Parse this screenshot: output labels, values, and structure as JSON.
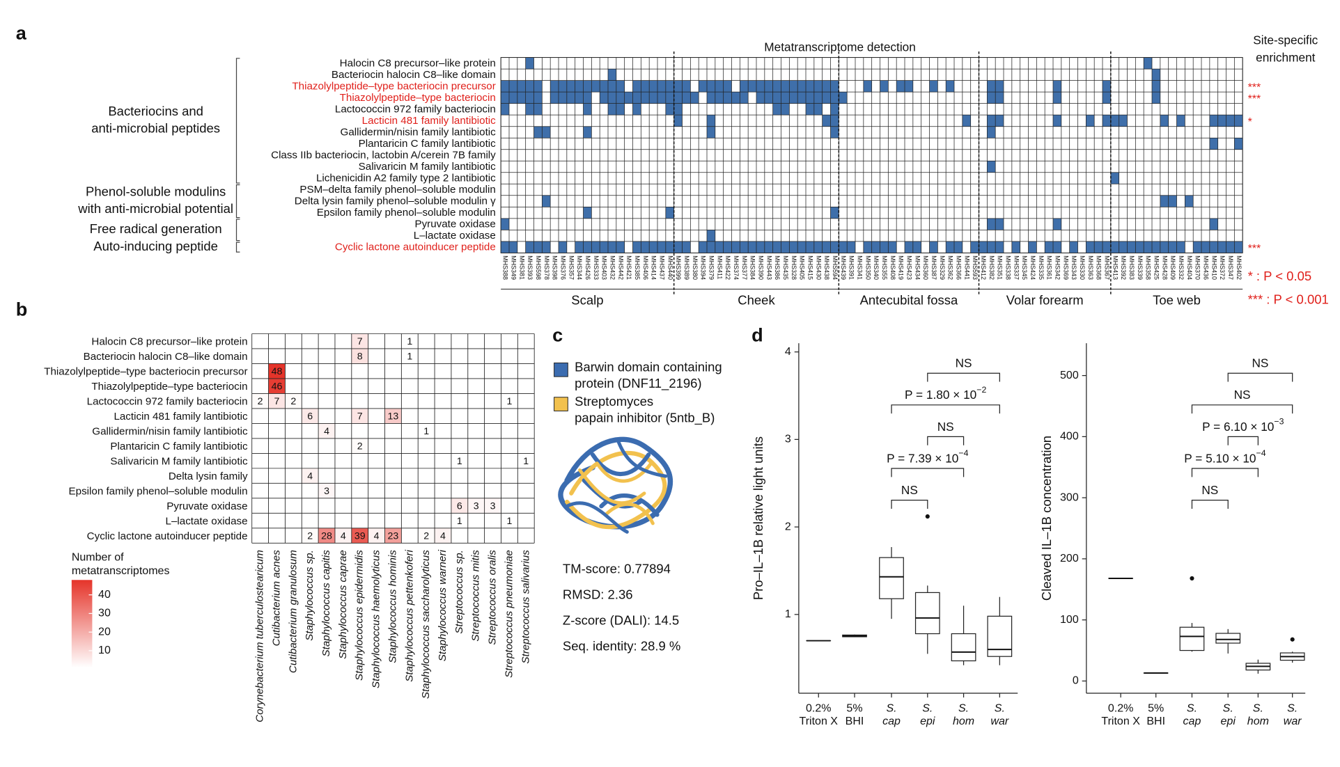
{
  "panel_a": {
    "letter": "a",
    "title": "Metatranscriptome detection",
    "enrichment_title": [
      "Site-specific",
      "enrichment"
    ],
    "key": [
      "* : P < 0.05",
      "*** : P < 0.001"
    ],
    "key_color": "#e0201b",
    "cell_color": "#3f6faa",
    "sites": [
      {
        "name": "Scalp",
        "samples": [
          "MHS388",
          "MHS349",
          "MHS381",
          "MHS393",
          "MHS598",
          "MHS378",
          "MHS398",
          "MHS376",
          "MHS357",
          "MHS344",
          "MHS426",
          "MHS333",
          "MHS403",
          "MHS432",
          "MHS442",
          "MHS421",
          "MHS385",
          "MHS406",
          "MHS414",
          "MHS437",
          "MHS440"
        ]
      },
      {
        "name": "Cheek",
        "samples": [
          "MHS399",
          "MHS389",
          "MHS380",
          "MHS394",
          "MHS379",
          "MHS411",
          "MHS422",
          "MHS374",
          "MHS377",
          "MHS384",
          "MHS390",
          "MHS443",
          "MHS386",
          "MHS435",
          "MHS328",
          "MHS405",
          "MHS415",
          "MHS430",
          "MHS438",
          "MHS594"
        ]
      },
      {
        "name": "Antecubital fossa",
        "samples": [
          "MHS439",
          "MHS391",
          "MHS341",
          "MHS350",
          "MHS340",
          "MHS355",
          "MHS408",
          "MHS419",
          "MHS423",
          "MHS434",
          "MHS360",
          "MHS387",
          "MHS329",
          "MHS362",
          "MHS366",
          "MHS441",
          "MHS593"
        ]
      },
      {
        "name": "Volar forearm",
        "samples": [
          "MHS412",
          "MHS382",
          "MHS351",
          "MHS338",
          "MHS337",
          "MHS345",
          "MHS424",
          "MHS335",
          "MHS361",
          "MHS342",
          "MHS369",
          "MHS343",
          "MHS330",
          "MHS363",
          "MHS368",
          "MHS367"
        ]
      },
      {
        "name": "Toe web",
        "samples": [
          "MHS413",
          "MHS392",
          "MHS383",
          "MHS339",
          "MHS358",
          "MHS425",
          "MHS428",
          "MHS409",
          "MHS332",
          "MHS404",
          "MHS370",
          "MHS436",
          "MHS410",
          "MHS372",
          "MHS347",
          "MHS402"
        ]
      }
    ],
    "groups": [
      {
        "label": [
          "Bacteriocins and",
          "anti-microbial peptides"
        ],
        "rows": [
          0,
          10
        ]
      },
      {
        "label": [
          "Phenol-soluble modulins",
          "with anti-microbial potential"
        ],
        "rows": [
          11,
          13
        ]
      },
      {
        "label": [
          "Free radical generation"
        ],
        "rows": [
          14,
          15
        ]
      },
      {
        "label": [
          "Auto-inducing peptide"
        ],
        "rows": [
          16,
          16
        ]
      }
    ],
    "rows": [
      {
        "label": "Halocin C8 precursor–like protein",
        "color": "#111111",
        "detected": [
          3,
          78
        ]
      },
      {
        "label": "Bacteriocin halocin C8–like domain",
        "color": "#111111",
        "detected": [
          13,
          79
        ]
      },
      {
        "label": "Thiazolylpeptide–type bacteriocin precursor",
        "color": "#e0201b",
        "significance": "***",
        "detected": [
          0,
          1,
          2,
          3,
          4,
          6,
          7,
          8,
          9,
          10,
          11,
          12,
          13,
          14,
          16,
          17,
          18,
          19,
          20,
          21,
          22,
          24,
          25,
          26,
          27,
          29,
          30,
          31,
          32,
          33,
          34,
          35,
          36,
          37,
          38,
          39,
          40,
          44,
          46,
          48,
          49,
          52,
          54,
          59,
          60,
          67,
          73,
          79
        ]
      },
      {
        "label": "Thiazolylpeptide–type bacteriocin",
        "color": "#e0201b",
        "significance": "***",
        "detected": [
          0,
          1,
          2,
          3,
          4,
          6,
          7,
          8,
          9,
          10,
          12,
          13,
          14,
          15,
          16,
          17,
          18,
          19,
          20,
          21,
          22,
          23,
          25,
          26,
          27,
          28,
          29,
          31,
          32,
          33,
          34,
          35,
          36,
          37,
          38,
          39,
          40,
          41,
          59,
          60,
          67,
          73,
          79
        ]
      },
      {
        "label": "Lactococcin 972 family bacteriocin",
        "color": "#111111",
        "detected": [
          0,
          3,
          4,
          10,
          13,
          14,
          16,
          20,
          21,
          33,
          34,
          37,
          38,
          40
        ]
      },
      {
        "label": "Lacticin 481 family lantibiotic",
        "color": "#e0201b",
        "significance": "*",
        "detected": [
          21,
          25,
          39,
          40,
          56,
          59,
          60,
          67,
          71,
          73,
          74,
          75,
          80,
          82,
          86,
          87,
          88,
          89
        ]
      },
      {
        "label": "Gallidermin/nisin family lantibiotic",
        "color": "#111111",
        "detected": [
          4,
          5,
          10,
          25,
          40,
          59
        ]
      },
      {
        "label": "Plantaricin C family lantibiotic",
        "color": "#111111",
        "detected": [
          86,
          89
        ]
      },
      {
        "label": "Class IIb bacteriocin, lactobin A/cerein 7B family",
        "color": "#111111",
        "detected": []
      },
      {
        "label": "Salivaricin M family lantibiotic",
        "color": "#111111",
        "detected": [
          59
        ]
      },
      {
        "label": "Lichenicidin A2 family type 2 lantibiotic",
        "color": "#111111",
        "detected": [
          74
        ]
      },
      {
        "label": "PSM–delta family phenol–soluble modulin",
        "color": "#111111",
        "detected": []
      },
      {
        "label": "Delta lysin family phenol–soluble modulin γ",
        "color": "#111111",
        "detected": [
          5,
          80,
          81,
          83
        ]
      },
      {
        "label": "Epsilon family phenol–soluble modulin",
        "color": "#111111",
        "detected": [
          10,
          20,
          40
        ]
      },
      {
        "label": "Pyruvate oxidase",
        "color": "#111111",
        "detected": [
          0,
          59,
          60,
          67,
          86
        ]
      },
      {
        "label": "L–lactate oxidase",
        "color": "#111111",
        "detected": [
          25
        ]
      },
      {
        "label": "Cyclic lactone autoinducer peptide",
        "color": "#e0201b",
        "significance": "***",
        "detected": [
          0,
          1,
          3,
          4,
          5,
          7,
          9,
          10,
          11,
          12,
          13,
          14,
          16,
          17,
          18,
          19,
          20,
          21,
          22,
          24,
          25,
          26,
          27,
          28,
          29,
          30,
          31,
          32,
          33,
          34,
          35,
          36,
          37,
          38,
          39,
          40,
          41,
          42,
          44,
          45,
          46,
          47,
          49,
          50,
          52,
          54,
          55,
          57,
          58,
          59,
          60,
          62,
          64,
          66,
          67,
          69,
          71,
          72,
          73,
          74,
          75,
          76,
          77,
          78,
          79,
          80,
          81,
          82,
          84,
          85,
          86,
          87,
          88,
          89
        ]
      }
    ]
  },
  "panel_b": {
    "letter": "b",
    "rows": [
      "Halocin C8 precursor–like protein",
      "Bacteriocin halocin C8–like domain",
      "Thiazolylpeptide–type bacteriocin precursor",
      "Thiazolylpeptide–type bacteriocin",
      "Lactococcin 972 family bacteriocin",
      "Lacticin 481 family lantibiotic",
      "Gallidermin/nisin family lantibiotic",
      "Plantaricin C family lantibiotic",
      "Salivaricin M family lantibiotic",
      "Delta lysin family",
      "Epsilon family phenol–soluble modulin",
      "Pyruvate oxidase",
      "L–lactate oxidase",
      "Cyclic lactone autoinducer peptide"
    ],
    "columns": [
      "Corynebacterium tuberculostearicum",
      "Cutibacterium acnes",
      "Cutibacterium granulosum",
      "Staphylococcus sp.",
      "Staphylococcus capitis",
      "Staphylococcus caprae",
      "Staphylococcus epidermidis",
      "Staphylococcus haemolyticus",
      "Staphylococcus hominis",
      "Staphylococcus pettenkoferi",
      "Staphylococcus saccharolyticus",
      "Staphylococcus warneri",
      "Streptococcus sp.",
      "Streptococcus mitis",
      "Streptococcus oralis",
      "Streptococcus pneumoniae",
      "Streptococcus salivarius"
    ],
    "values": [
      [
        null,
        null,
        null,
        null,
        null,
        null,
        7,
        null,
        null,
        1,
        null,
        null,
        null,
        null,
        null,
        null,
        null
      ],
      [
        null,
        null,
        null,
        null,
        null,
        null,
        8,
        null,
        null,
        1,
        null,
        null,
        null,
        null,
        null,
        null,
        null
      ],
      [
        null,
        48,
        null,
        null,
        null,
        null,
        null,
        null,
        null,
        null,
        null,
        null,
        null,
        null,
        null,
        null,
        null
      ],
      [
        null,
        46,
        null,
        null,
        null,
        null,
        null,
        null,
        null,
        null,
        null,
        null,
        null,
        null,
        null,
        null,
        null
      ],
      [
        2,
        7,
        2,
        null,
        null,
        null,
        null,
        null,
        null,
        null,
        null,
        null,
        null,
        null,
        null,
        1,
        null
      ],
      [
        null,
        null,
        null,
        6,
        null,
        null,
        7,
        null,
        13,
        null,
        null,
        null,
        null,
        null,
        null,
        null,
        null
      ],
      [
        null,
        null,
        null,
        null,
        4,
        null,
        null,
        null,
        null,
        null,
        1,
        null,
        null,
        null,
        null,
        null,
        null
      ],
      [
        null,
        null,
        null,
        null,
        null,
        null,
        2,
        null,
        null,
        null,
        null,
        null,
        null,
        null,
        null,
        null,
        null
      ],
      [
        null,
        null,
        null,
        null,
        null,
        null,
        null,
        null,
        null,
        null,
        null,
        null,
        1,
        null,
        null,
        null,
        1
      ],
      [
        null,
        null,
        null,
        4,
        null,
        null,
        null,
        null,
        null,
        null,
        null,
        null,
        null,
        null,
        null,
        null,
        null
      ],
      [
        null,
        null,
        null,
        null,
        3,
        null,
        null,
        null,
        null,
        null,
        null,
        null,
        null,
        null,
        null,
        null,
        null
      ],
      [
        null,
        null,
        null,
        null,
        null,
        null,
        null,
        null,
        null,
        null,
        null,
        null,
        6,
        3,
        3,
        null,
        null
      ],
      [
        null,
        null,
        null,
        null,
        null,
        null,
        null,
        null,
        null,
        null,
        null,
        null,
        1,
        null,
        null,
        1,
        null
      ],
      [
        null,
        null,
        null,
        2,
        28,
        4,
        39,
        4,
        23,
        null,
        2,
        4,
        null,
        null,
        null,
        null,
        null
      ]
    ],
    "colorbar_title": [
      "Number of",
      "metatranscriptomes"
    ],
    "color_range": [
      1,
      48
    ],
    "color_low": "#ffffff",
    "color_high": "#e5342a",
    "colorbar_ticks": [
      10,
      20,
      30,
      40
    ]
  },
  "panel_c": {
    "letter": "c",
    "legend": [
      {
        "label": [
          "Barwin domain containing",
          "protein (DNF11_2196)"
        ],
        "color": "#3b6cb0"
      },
      {
        "label": [
          "Streptomyces",
          "papain inhibitor (5ntb_B)"
        ],
        "color": "#f2c14e"
      }
    ],
    "stats": [
      "TM-score: 0.77894",
      "RMSD: 2.36",
      "Z-score (DALI): 14.5",
      "Seq. identity: 28.9 %"
    ]
  },
  "panel_d_letter": "d",
  "chart_data": [
    {
      "type": "box",
      "ylabel": "Pro–IL–1B relative light units",
      "categories": [
        [
          "0.2%",
          "Triton X"
        ],
        [
          "5%",
          "BHI"
        ],
        [
          "S.",
          "cap"
        ],
        [
          "S.",
          "epi"
        ],
        [
          "S.",
          "hom"
        ],
        [
          "S.",
          "war"
        ]
      ],
      "ylim": [
        0.1,
        4.1
      ],
      "yticks": [
        1,
        2,
        3,
        4
      ],
      "boxes": [
        {
          "low": 0.7,
          "q1": 0.7,
          "median": 0.7,
          "q3": 0.7,
          "high": 0.7,
          "outliers": []
        },
        {
          "low": 0.74,
          "q1": 0.745,
          "median": 0.755,
          "q3": 0.765,
          "high": 0.77,
          "outliers": []
        },
        {
          "low": 0.95,
          "q1": 1.18,
          "median": 1.43,
          "q3": 1.65,
          "high": 1.77,
          "outliers": []
        },
        {
          "low": 0.55,
          "q1": 0.78,
          "median": 0.96,
          "q3": 1.25,
          "high": 1.33,
          "outliers": [
            2.12
          ]
        },
        {
          "low": 0.42,
          "q1": 0.47,
          "median": 0.57,
          "q3": 0.78,
          "high": 1.1,
          "outliers": []
        },
        {
          "low": 0.42,
          "q1": 0.52,
          "median": 0.6,
          "q3": 0.98,
          "high": 1.2,
          "outliers": []
        }
      ],
      "comparisons": [
        {
          "pair": [
            2,
            3
          ],
          "label": "NS"
        },
        {
          "pair": [
            2,
            4
          ],
          "label": "P = 7.39 × 10",
          "exponent": "−4"
        },
        {
          "pair": [
            3,
            4
          ],
          "label": "NS"
        },
        {
          "pair": [
            2,
            5
          ],
          "label": "P = 1.80 × 10",
          "exponent": "−2"
        },
        {
          "pair": [
            3,
            5
          ],
          "label": "NS"
        }
      ]
    },
    {
      "type": "box",
      "ylabel": "Cleaved IL–1B concentration",
      "categories": [
        [
          "0.2%",
          "Triton X"
        ],
        [
          "5%",
          "BHI"
        ],
        [
          "S.",
          "cap"
        ],
        [
          "S.",
          "epi"
        ],
        [
          "S.",
          "hom"
        ],
        [
          "S.",
          "war"
        ]
      ],
      "ylim": [
        -20,
        553
      ],
      "yticks": [
        0,
        100,
        200,
        300,
        400,
        500
      ],
      "boxes": [
        {
          "low": 168,
          "q1": 168,
          "median": 168,
          "q3": 168,
          "high": 168,
          "outliers": []
        },
        {
          "low": 13,
          "q1": 13,
          "median": 13,
          "q3": 13,
          "high": 13,
          "outliers": []
        },
        {
          "low": 48,
          "q1": 50,
          "median": 73,
          "q3": 88,
          "high": 95,
          "outliers": [
            168
          ]
        },
        {
          "low": 45,
          "q1": 62,
          "median": 68,
          "q3": 78,
          "high": 85,
          "outliers": []
        },
        {
          "low": 12,
          "q1": 18,
          "median": 24,
          "q3": 29,
          "high": 35,
          "outliers": []
        },
        {
          "low": 30,
          "q1": 34,
          "median": 40,
          "q3": 46,
          "high": 48,
          "outliers": [
            68
          ]
        }
      ],
      "comparisons": [
        {
          "pair": [
            2,
            3
          ],
          "label": "NS"
        },
        {
          "pair": [
            2,
            4
          ],
          "label": "P = 5.10 × 10",
          "exponent": "−4"
        },
        {
          "pair": [
            3,
            4
          ],
          "label": "P = 6.10 × 10",
          "exponent": "−3"
        },
        {
          "pair": [
            2,
            5
          ],
          "label": "NS"
        },
        {
          "pair": [
            3,
            5
          ],
          "label": "NS"
        }
      ]
    }
  ]
}
